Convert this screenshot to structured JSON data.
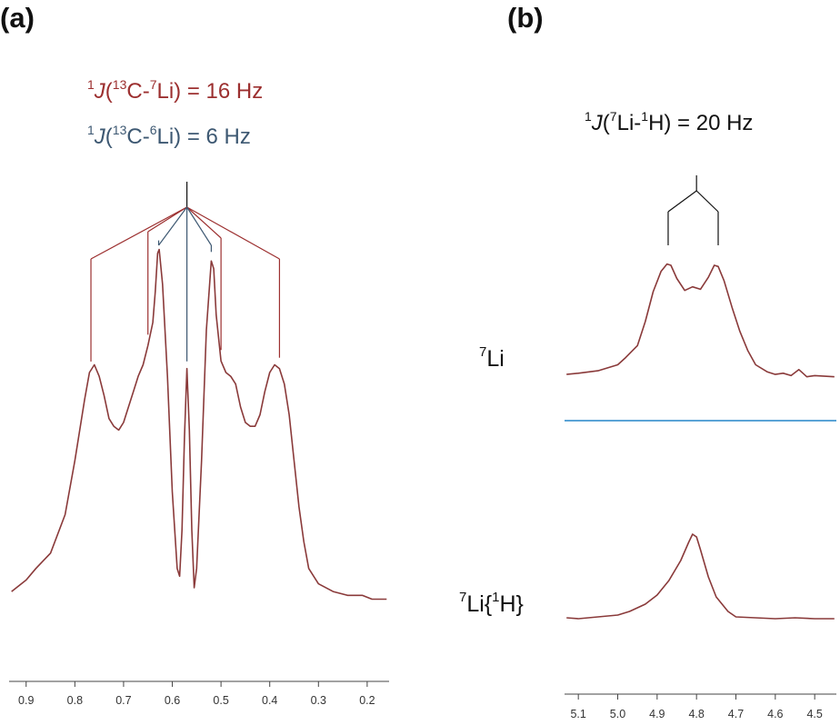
{
  "panels": {
    "a": {
      "label": "(a)"
    },
    "b": {
      "label": "(b)"
    }
  },
  "annotations": {
    "a_line1": {
      "prefix": "1",
      "j": "J",
      "open": "(",
      "iso1": "13",
      "el1": "C-",
      "iso2": "7",
      "el2": "Li) = 16 Hz"
    },
    "a_line2": {
      "prefix": "1",
      "j": "J",
      "open": "(",
      "iso1": "13",
      "el1": "C-",
      "iso2": "6",
      "el2": "Li) = 6 Hz"
    },
    "b_line1": {
      "prefix": "1",
      "j": "J",
      "open": "(",
      "iso1": "7",
      "el1": "Li-",
      "iso2": "1",
      "el2": "H) = 20 Hz"
    }
  },
  "trace_labels": {
    "top": {
      "sup": "7",
      "text": "Li"
    },
    "bottom": {
      "sup": "7",
      "text": "Li{",
      "sup2": "1",
      "tail": "H}"
    }
  },
  "colors": {
    "spectrum": "#8a3a3a",
    "coupling_red": "#9c2f2f",
    "coupling_blue": "#3d5872",
    "coupling_black": "#111111",
    "divider": "#5aa3d6",
    "axis": "#444444"
  },
  "chart_data": [
    {
      "type": "line",
      "panel": "(a)",
      "xlabel": "",
      "ylabel": "",
      "x_axis_reversed": true,
      "xlim": [
        0.935,
        0.155
      ],
      "x_ticks": [
        "0.9",
        "0.8",
        "0.7",
        "0.6",
        "0.5",
        "0.4",
        "0.3",
        "0.2"
      ],
      "x_tick_values": [
        0.9,
        0.8,
        0.7,
        0.6,
        0.5,
        0.4,
        0.3,
        0.2
      ],
      "series": [
        {
          "x": [
            0.93,
            0.9,
            0.88,
            0.85,
            0.82,
            0.8,
            0.78,
            0.77,
            0.76,
            0.75,
            0.74,
            0.73,
            0.72,
            0.71,
            0.7,
            0.69,
            0.68,
            0.67,
            0.66,
            0.65,
            0.64,
            0.635,
            0.63,
            0.627,
            0.62,
            0.61,
            0.6,
            0.59,
            0.585,
            0.58,
            0.575,
            0.57,
            0.565,
            0.56,
            0.555,
            0.55,
            0.54,
            0.53,
            0.52,
            0.515,
            0.51,
            0.5,
            0.49,
            0.48,
            0.47,
            0.46,
            0.45,
            0.44,
            0.43,
            0.42,
            0.41,
            0.4,
            0.39,
            0.38,
            0.37,
            0.36,
            0.35,
            0.34,
            0.33,
            0.32,
            0.3,
            0.27,
            0.24,
            0.21,
            0.19,
            0.16
          ],
          "y": [
            0.04,
            0.07,
            0.1,
            0.14,
            0.24,
            0.38,
            0.54,
            0.61,
            0.63,
            0.6,
            0.55,
            0.49,
            0.47,
            0.46,
            0.48,
            0.52,
            0.56,
            0.6,
            0.63,
            0.68,
            0.74,
            0.82,
            0.92,
            0.93,
            0.84,
            0.6,
            0.3,
            0.1,
            0.08,
            0.2,
            0.44,
            0.62,
            0.46,
            0.2,
            0.05,
            0.1,
            0.38,
            0.72,
            0.9,
            0.88,
            0.76,
            0.64,
            0.61,
            0.6,
            0.58,
            0.52,
            0.48,
            0.47,
            0.47,
            0.5,
            0.56,
            0.61,
            0.63,
            0.62,
            0.58,
            0.5,
            0.38,
            0.26,
            0.17,
            0.1,
            0.06,
            0.04,
            0.03,
            0.03,
            0.02,
            0.02
          ]
        }
      ],
      "coupling_tree": {
        "center": 0.57,
        "lines_7Li": [
          0.767,
          0.65,
          0.5,
          0.38
        ],
        "lines_6Li": [
          0.628,
          0.52
        ],
        "center_line": 0.57
      }
    },
    {
      "type": "line",
      "panel": "(b)",
      "xlabel": "",
      "ylabel": "",
      "x_axis_reversed": true,
      "xlim": [
        5.135,
        4.445
      ],
      "x_ticks": [
        "5.1",
        "5.0",
        "4.9",
        "4.8",
        "4.7",
        "4.6",
        "4.5"
      ],
      "x_tick_values": [
        5.1,
        5.0,
        4.9,
        4.8,
        4.7,
        4.6,
        4.5
      ],
      "series": [
        {
          "name": "7Li",
          "x": [
            5.13,
            5.1,
            5.05,
            5.0,
            4.98,
            4.95,
            4.93,
            4.91,
            4.89,
            4.875,
            4.865,
            4.85,
            4.83,
            4.81,
            4.79,
            4.77,
            4.755,
            4.745,
            4.73,
            4.71,
            4.69,
            4.67,
            4.65,
            4.62,
            4.6,
            4.58,
            4.56,
            4.54,
            4.52,
            4.5,
            4.45
          ],
          "y": [
            0.06,
            0.07,
            0.09,
            0.14,
            0.2,
            0.3,
            0.5,
            0.75,
            0.92,
            0.98,
            0.97,
            0.86,
            0.76,
            0.79,
            0.77,
            0.87,
            0.97,
            0.96,
            0.84,
            0.62,
            0.42,
            0.26,
            0.14,
            0.08,
            0.06,
            0.07,
            0.05,
            0.1,
            0.04,
            0.05,
            0.04
          ]
        },
        {
          "name": "7Li{1H}",
          "x": [
            5.13,
            5.1,
            5.05,
            5.0,
            4.97,
            4.93,
            4.9,
            4.87,
            4.84,
            4.82,
            4.81,
            4.8,
            4.79,
            4.77,
            4.75,
            4.72,
            4.7,
            4.65,
            4.6,
            4.55,
            4.5,
            4.45
          ],
          "y": [
            0.05,
            0.04,
            0.06,
            0.08,
            0.12,
            0.2,
            0.3,
            0.46,
            0.68,
            0.88,
            0.97,
            0.94,
            0.8,
            0.5,
            0.28,
            0.12,
            0.06,
            0.05,
            0.04,
            0.05,
            0.04,
            0.04
          ]
        }
      ],
      "coupling_tree": {
        "center": 4.8,
        "lines": [
          4.872,
          4.745
        ]
      }
    }
  ]
}
